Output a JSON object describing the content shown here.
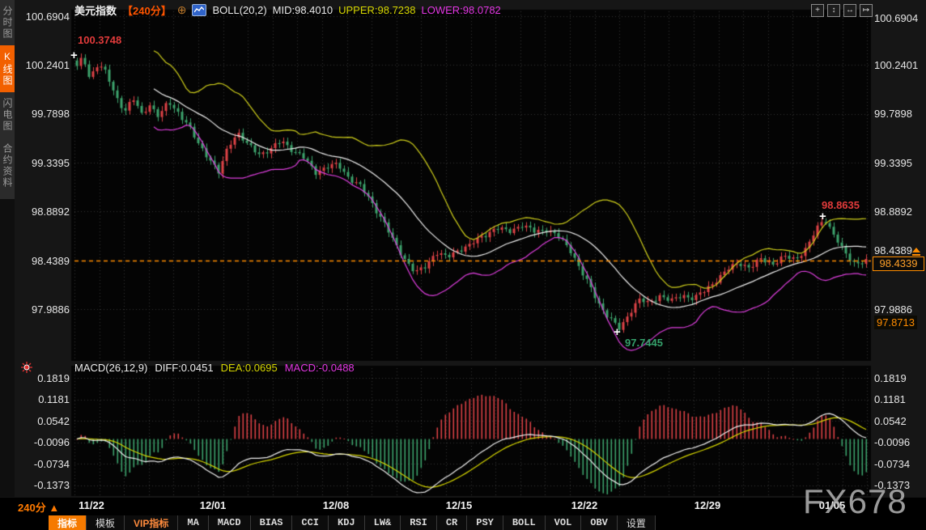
{
  "header": {
    "symbol": "美元指数",
    "period": "【240分】",
    "boll_label": "BOLL(20,2)",
    "mid": "MID:98.4010",
    "upper": "UPPER:98.7238",
    "lower": "LOWER:98.0782"
  },
  "macd_header": {
    "name": "MACD(26,12,9)",
    "diff": "DIFF:0.0451",
    "dea": "DEA:0.0695",
    "macd": "MACD:-0.0488"
  },
  "sidebar": {
    "items": [
      {
        "label": "分时图"
      },
      {
        "label": "K线图"
      },
      {
        "label": "闪电图"
      },
      {
        "label": "合约资料"
      }
    ]
  },
  "icons": {
    "add_indicator": "⊕",
    "pan": "+",
    "fit_vertical": "↕",
    "fit_horizontal": "↔",
    "scroll_right": "↦",
    "period_arrow": "▲"
  },
  "toolbar": {
    "period_label": "240分",
    "items": [
      "指标",
      "模板",
      "VIP指标",
      "MA",
      "MACD",
      "BIAS",
      "CCI",
      "KDJ",
      "LW&",
      "RSI",
      "CR",
      "PSY",
      "BOLL",
      "VOL",
      "OBV",
      "设置"
    ]
  },
  "annotations": {
    "high_first": "100.3748",
    "high_recent": "98.8635",
    "low": "97.7445",
    "current_price": "98.4339",
    "low_marker": "97.8713"
  },
  "watermark": "FX678",
  "chart_data": {
    "type": "candlestick",
    "title": "美元指数 240分 K线图 with BOLL(20,2) and MACD(26,12,9)",
    "price_axis": [
      "100.6904",
      "100.2401",
      "99.7898",
      "99.3395",
      "98.8892",
      "98.4389",
      "97.9886"
    ],
    "macd_axis": [
      "0.1819",
      "0.1181",
      "0.0542",
      "-0.0096",
      "-0.0734",
      "-0.1373"
    ],
    "x_axis": [
      {
        "label": "11/22",
        "pos": 0.021
      },
      {
        "label": "12/01",
        "pos": 0.174
      },
      {
        "label": "12/08",
        "pos": 0.329
      },
      {
        "label": "12/15",
        "pos": 0.485
      },
      {
        "label": "12/22",
        "pos": 0.643
      },
      {
        "label": "12/29",
        "pos": 0.798
      },
      {
        "label": "01/05",
        "pos": 0.955
      }
    ],
    "price_range_top": 100.6904,
    "price_tick_step": 0.4503,
    "macd_range_top": 0.1819,
    "macd_tick_step": 0.06385,
    "current_price": 98.4339,
    "bollinger": {
      "period": 20,
      "mult": 2
    },
    "macd_params": {
      "slow": 26,
      "fast": 12,
      "signal": 9
    },
    "candle_count": 196,
    "price_anchors": [
      [
        0,
        100.22
      ],
      [
        0.008,
        100.31
      ],
      [
        0.016,
        100.12
      ],
      [
        0.027,
        100.26
      ],
      [
        0.037,
        100.16
      ],
      [
        0.049,
        99.95
      ],
      [
        0.061,
        99.82
      ],
      [
        0.071,
        99.93
      ],
      [
        0.082,
        99.78
      ],
      [
        0.092,
        99.88
      ],
      [
        0.104,
        99.76
      ],
      [
        0.116,
        99.9
      ],
      [
        0.129,
        99.8
      ],
      [
        0.141,
        99.68
      ],
      [
        0.153,
        99.52
      ],
      [
        0.166,
        99.4
      ],
      [
        0.18,
        99.24
      ],
      [
        0.192,
        99.5
      ],
      [
        0.204,
        99.62
      ],
      [
        0.216,
        99.5
      ],
      [
        0.231,
        99.42
      ],
      [
        0.245,
        99.46
      ],
      [
        0.259,
        99.54
      ],
      [
        0.273,
        99.46
      ],
      [
        0.288,
        99.38
      ],
      [
        0.302,
        99.25
      ],
      [
        0.316,
        99.3
      ],
      [
        0.331,
        99.32
      ],
      [
        0.345,
        99.2
      ],
      [
        0.359,
        99.12
      ],
      [
        0.373,
        98.98
      ],
      [
        0.388,
        98.8
      ],
      [
        0.402,
        98.6
      ],
      [
        0.416,
        98.45
      ],
      [
        0.429,
        98.32
      ],
      [
        0.441,
        98.38
      ],
      [
        0.455,
        98.52
      ],
      [
        0.469,
        98.46
      ],
      [
        0.484,
        98.54
      ],
      [
        0.498,
        98.58
      ],
      [
        0.514,
        98.66
      ],
      [
        0.531,
        98.74
      ],
      [
        0.547,
        98.7
      ],
      [
        0.563,
        98.77
      ],
      [
        0.58,
        98.7
      ],
      [
        0.596,
        98.73
      ],
      [
        0.612,
        98.64
      ],
      [
        0.627,
        98.52
      ],
      [
        0.639,
        98.34
      ],
      [
        0.651,
        98.18
      ],
      [
        0.663,
        98.02
      ],
      [
        0.678,
        97.88
      ],
      [
        0.688,
        97.8
      ],
      [
        0.7,
        97.96
      ],
      [
        0.712,
        98.08
      ],
      [
        0.724,
        98.04
      ],
      [
        0.739,
        98.12
      ],
      [
        0.753,
        98.06
      ],
      [
        0.767,
        98.12
      ],
      [
        0.782,
        98.09
      ],
      [
        0.796,
        98.16
      ],
      [
        0.81,
        98.26
      ],
      [
        0.824,
        98.35
      ],
      [
        0.839,
        98.42
      ],
      [
        0.853,
        98.37
      ],
      [
        0.867,
        98.45
      ],
      [
        0.882,
        98.41
      ],
      [
        0.896,
        98.47
      ],
      [
        0.91,
        98.45
      ],
      [
        0.924,
        98.55
      ],
      [
        0.937,
        98.72
      ],
      [
        0.947,
        98.83
      ],
      [
        0.959,
        98.68
      ],
      [
        0.971,
        98.52
      ],
      [
        0.984,
        98.42
      ],
      [
        1,
        98.43
      ]
    ],
    "colors": {
      "up": "#dd4247",
      "down": "#3da36c",
      "boll_upper": "#cfcf1b",
      "boll_mid": "#ededed",
      "boll_lower": "#df3fdf",
      "diff_line": "#f0f0f0",
      "dea_line": "#d6d600",
      "grid": "#343434",
      "price_line": "#ff8c00",
      "plot_bg": "#040404"
    }
  }
}
